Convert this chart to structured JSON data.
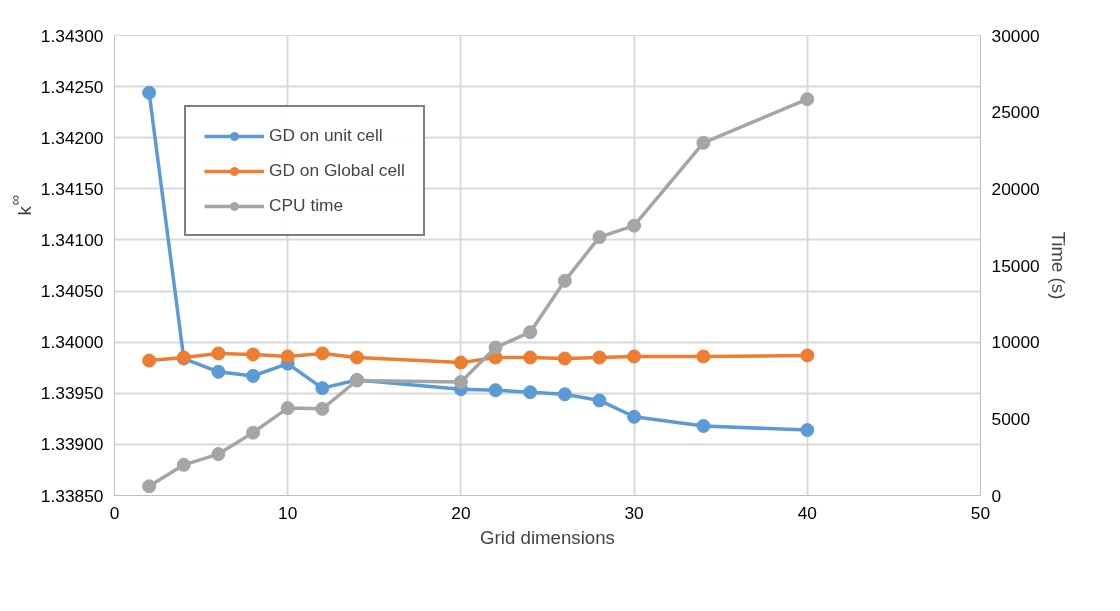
{
  "chart_data": {
    "type": "line",
    "xlabel": "Grid dimensions",
    "ylabel": "k$_{∞}$",
    "y2label": "Time (s)",
    "x": [
      2,
      4,
      6,
      8,
      10,
      12,
      14,
      20,
      22,
      24,
      26,
      28,
      30,
      34,
      40
    ],
    "series": [
      {
        "name": "GD on unit cell",
        "color": "#5b9bd5",
        "values": [
          1.34244,
          1.33984,
          1.33971,
          1.33967,
          1.33979,
          1.33955,
          1.33963,
          1.33954,
          1.33953,
          1.33951,
          1.33949,
          1.33943,
          1.33927,
          1.33918,
          1.33914
        ]
      },
      {
        "name": "GD on Global cell",
        "color": "#ed7d31",
        "values": [
          1.33982,
          1.33985,
          1.33989,
          1.33988,
          1.33986,
          1.33989,
          1.33985,
          1.3398,
          1.33985,
          1.33985,
          1.33984,
          1.33985,
          1.33986,
          1.33986,
          1.33987
        ]
      },
      {
        "name": "CPU time",
        "color": "#a5a5a5",
        "axis": "y2",
        "values": [
          600,
          2000,
          2700,
          4100,
          5700,
          5650,
          7500,
          7400,
          9650,
          10650,
          14000,
          16850,
          17600,
          23000,
          25850
        ]
      }
    ],
    "xlim": [
      0,
      50
    ],
    "xticks": [
      0,
      10,
      20,
      30,
      40,
      50
    ],
    "ylim": [
      1.3385,
      1.343
    ],
    "yticks": [
      {
        "value": 1.3385,
        "label": "1.33850"
      },
      {
        "value": 1.339,
        "label": "1.33900"
      },
      {
        "value": 1.3395,
        "label": "1.33950"
      },
      {
        "value": 1.34,
        "label": "1.34000"
      },
      {
        "value": 1.3405,
        "label": "1.34050"
      },
      {
        "value": 1.341,
        "label": "1.34100"
      },
      {
        "value": 1.3415,
        "label": "1.34150"
      },
      {
        "value": 1.342,
        "label": "1.34200"
      },
      {
        "value": 1.3425,
        "label": "1.34250"
      },
      {
        "value": 1.343,
        "label": "1.34300"
      }
    ],
    "y2lim": [
      0,
      30000
    ],
    "y2ticks": [
      0,
      5000,
      10000,
      15000,
      20000,
      25000,
      30000
    ],
    "grid": true,
    "legend": "top left",
    "marker": "circle",
    "line_style": "solid"
  }
}
